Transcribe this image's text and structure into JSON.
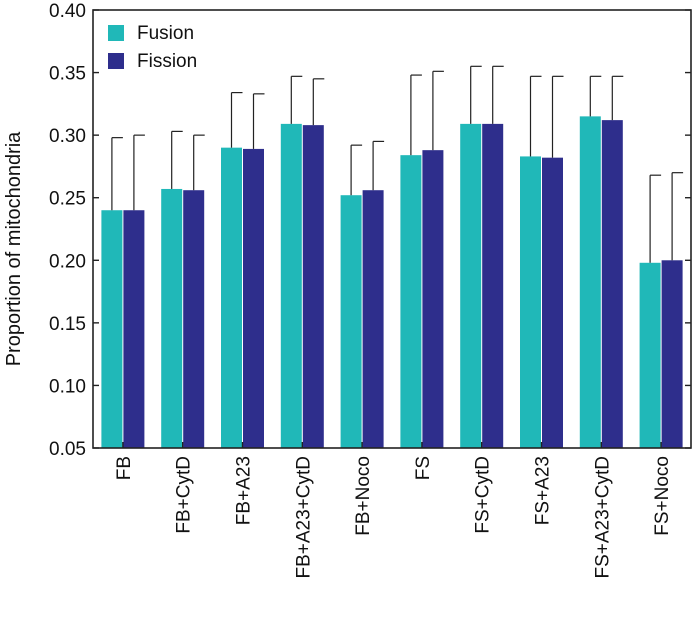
{
  "chart_data": {
    "type": "bar",
    "title": "",
    "xlabel": "",
    "ylabel": "Proportion of mitochondria",
    "ylim": [
      0.05,
      0.4
    ],
    "yticks": [
      "0.05",
      "0.10",
      "0.15",
      "0.20",
      "0.25",
      "0.30",
      "0.35",
      "0.40"
    ],
    "grid": false,
    "legend_position": "top-left",
    "categories": [
      "FB",
      "FB+CytD",
      "FB+A23",
      "FB+A23+CytD",
      "FB+Noco",
      "FS",
      "FS+CytD",
      "FS+A23",
      "FS+A23+CytD",
      "FS+Noco"
    ],
    "series": [
      {
        "name": "Fusion",
        "color": "#20B8B8",
        "values": [
          0.24,
          0.257,
          0.29,
          0.309,
          0.252,
          0.284,
          0.309,
          0.283,
          0.315,
          0.198
        ],
        "error_upper": [
          0.298,
          0.303,
          0.334,
          0.347,
          0.292,
          0.348,
          0.355,
          0.347,
          0.347,
          0.268
        ]
      },
      {
        "name": "Fission",
        "color": "#2E2E8C",
        "values": [
          0.24,
          0.256,
          0.289,
          0.308,
          0.256,
          0.288,
          0.309,
          0.282,
          0.312,
          0.2
        ],
        "error_upper": [
          0.3,
          0.3,
          0.333,
          0.345,
          0.295,
          0.351,
          0.355,
          0.347,
          0.347,
          0.27
        ]
      }
    ]
  }
}
